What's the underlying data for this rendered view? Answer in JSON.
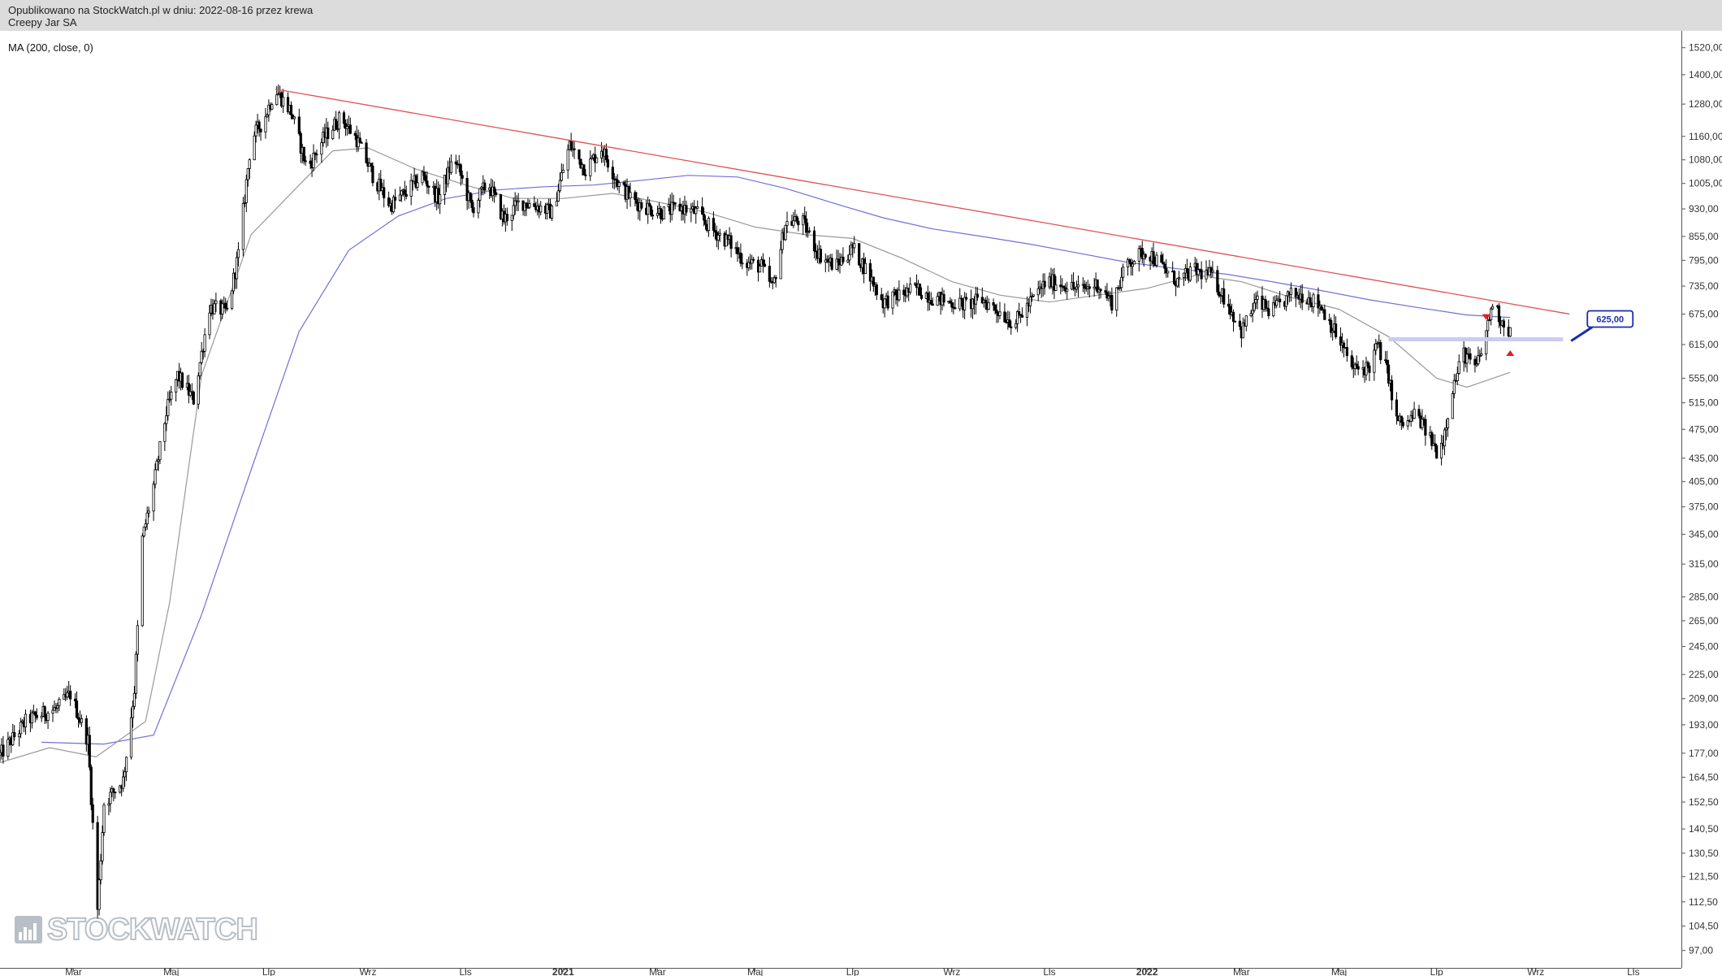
{
  "header": {
    "published_line": "Opublikowano na StockWatch.pl w dniu: 2022-08-16 przez krewa",
    "instrument": "Creepy Jar SA"
  },
  "indicator_label": "MA (200, close, 0)",
  "watermark": "STOCKWATCH",
  "colors": {
    "trendline": "#e05050",
    "ma200": "#7070d8",
    "ma_short": "#999999",
    "level_band": "#c8ccf4",
    "marker": "#e02020",
    "callout": "#1a2bb0",
    "candles": "#000000"
  },
  "chart_data": {
    "type": "candlestick",
    "y_scale": "log",
    "ylim": [
      92,
      1600
    ],
    "x_range": [
      "2020-01-15",
      "2022-12-01"
    ],
    "y_ticks": [
      {
        "v": 97,
        "t": "97,00"
      },
      {
        "v": 104.5,
        "t": "104,50"
      },
      {
        "v": 112.5,
        "t": "112,50"
      },
      {
        "v": 121.5,
        "t": "121,50"
      },
      {
        "v": 130.5,
        "t": "130,50"
      },
      {
        "v": 140.5,
        "t": "140,50"
      },
      {
        "v": 152.5,
        "t": "152,50"
      },
      {
        "v": 164.5,
        "t": "164,50"
      },
      {
        "v": 177,
        "t": "177,00"
      },
      {
        "v": 193,
        "t": "193,00"
      },
      {
        "v": 209,
        "t": "209,00"
      },
      {
        "v": 225,
        "t": "225,00"
      },
      {
        "v": 245,
        "t": "245,00"
      },
      {
        "v": 265,
        "t": "265,00"
      },
      {
        "v": 285,
        "t": "285,00"
      },
      {
        "v": 315,
        "t": "315,00"
      },
      {
        "v": 345,
        "t": "345,00"
      },
      {
        "v": 375,
        "t": "375,00"
      },
      {
        "v": 405,
        "t": "405,00"
      },
      {
        "v": 435,
        "t": "435,00"
      },
      {
        "v": 475,
        "t": "475,00"
      },
      {
        "v": 515,
        "t": "515,00"
      },
      {
        "v": 555,
        "t": "555,00"
      },
      {
        "v": 615,
        "t": "615,00"
      },
      {
        "v": 675,
        "t": "675,00"
      },
      {
        "v": 735,
        "t": "735,00"
      },
      {
        "v": 795,
        "t": "795,00"
      },
      {
        "v": 855,
        "t": "855,00"
      },
      {
        "v": 930,
        "t": "930,00"
      },
      {
        "v": 1005,
        "t": "1005,00"
      },
      {
        "v": 1080,
        "t": "1080,00"
      },
      {
        "v": 1160,
        "t": "1160,00"
      },
      {
        "v": 1280,
        "t": "1280,00"
      },
      {
        "v": 1400,
        "t": "1400,00"
      },
      {
        "v": 1520,
        "t": "1520,00"
      }
    ],
    "x_ticks": [
      {
        "d": "2020-03-01",
        "t": "Mar"
      },
      {
        "d": "2020-05-01",
        "t": "Maj"
      },
      {
        "d": "2020-07-01",
        "t": "Lip"
      },
      {
        "d": "2020-09-01",
        "t": "Wrz"
      },
      {
        "d": "2020-11-01",
        "t": "Lis"
      },
      {
        "d": "2021-01-01",
        "t": "2021",
        "bold": true
      },
      {
        "d": "2021-03-01",
        "t": "Mar"
      },
      {
        "d": "2021-05-01",
        "t": "Maj"
      },
      {
        "d": "2021-07-01",
        "t": "Lip"
      },
      {
        "d": "2021-09-01",
        "t": "Wrz"
      },
      {
        "d": "2021-11-01",
        "t": "Lis"
      },
      {
        "d": "2022-01-01",
        "t": "2022",
        "bold": true
      },
      {
        "d": "2022-03-01",
        "t": "Mar"
      },
      {
        "d": "2022-05-01",
        "t": "Maj"
      },
      {
        "d": "2022-07-01",
        "t": "Lip"
      },
      {
        "d": "2022-09-01",
        "t": "Wrz"
      },
      {
        "d": "2022-11-01",
        "t": "Lis"
      }
    ],
    "price_path": [
      [
        "2020-01-15",
        176
      ],
      [
        "2020-02-01",
        196
      ],
      [
        "2020-02-20",
        203
      ],
      [
        "2020-02-28",
        212
      ],
      [
        "2020-03-10",
        184
      ],
      [
        "2020-03-16",
        110
      ],
      [
        "2020-03-20",
        152
      ],
      [
        "2020-04-01",
        163
      ],
      [
        "2020-04-08",
        215
      ],
      [
        "2020-04-13",
        340
      ],
      [
        "2020-04-20",
        400
      ],
      [
        "2020-04-28",
        500
      ],
      [
        "2020-05-05",
        560
      ],
      [
        "2020-05-15",
        520
      ],
      [
        "2020-05-25",
        690
      ],
      [
        "2020-06-05",
        680
      ],
      [
        "2020-06-12",
        810
      ],
      [
        "2020-06-20",
        1150
      ],
      [
        "2020-06-28",
        1220
      ],
      [
        "2020-07-05",
        1340
      ],
      [
        "2020-07-15",
        1250
      ],
      [
        "2020-07-25",
        1050
      ],
      [
        "2020-08-05",
        1160
      ],
      [
        "2020-08-15",
        1230
      ],
      [
        "2020-08-25",
        1150
      ],
      [
        "2020-09-05",
        1020
      ],
      [
        "2020-09-15",
        940
      ],
      [
        "2020-09-25",
        980
      ],
      [
        "2020-10-05",
        1030
      ],
      [
        "2020-10-15",
        960
      ],
      [
        "2020-10-25",
        1090
      ],
      [
        "2020-11-05",
        930
      ],
      [
        "2020-11-15",
        1010
      ],
      [
        "2020-11-25",
        900
      ],
      [
        "2020-12-05",
        950
      ],
      [
        "2020-12-15",
        940
      ],
      [
        "2020-12-25",
        920
      ],
      [
        "2021-01-05",
        1130
      ],
      [
        "2021-01-15",
        1050
      ],
      [
        "2021-01-25",
        1120
      ],
      [
        "2021-02-05",
        1000
      ],
      [
        "2021-02-15",
        950
      ],
      [
        "2021-02-25",
        930
      ],
      [
        "2021-03-05",
        920
      ],
      [
        "2021-03-15",
        935
      ],
      [
        "2021-03-25",
        920
      ],
      [
        "2021-04-05",
        870
      ],
      [
        "2021-04-15",
        840
      ],
      [
        "2021-04-25",
        790
      ],
      [
        "2021-05-05",
        780
      ],
      [
        "2021-05-12",
        730
      ],
      [
        "2021-05-20",
        890
      ],
      [
        "2021-05-30",
        900
      ],
      [
        "2021-06-10",
        810
      ],
      [
        "2021-06-20",
        780
      ],
      [
        "2021-07-01",
        825
      ],
      [
        "2021-07-10",
        770
      ],
      [
        "2021-07-20",
        700
      ],
      [
        "2021-07-30",
        715
      ],
      [
        "2021-08-10",
        730
      ],
      [
        "2021-08-20",
        710
      ],
      [
        "2021-08-30",
        700
      ],
      [
        "2021-09-10",
        695
      ],
      [
        "2021-09-20",
        705
      ],
      [
        "2021-10-01",
        680
      ],
      [
        "2021-10-10",
        655
      ],
      [
        "2021-10-20",
        700
      ],
      [
        "2021-10-30",
        745
      ],
      [
        "2021-11-10",
        740
      ],
      [
        "2021-11-20",
        725
      ],
      [
        "2021-12-01",
        740
      ],
      [
        "2021-12-10",
        700
      ],
      [
        "2021-12-20",
        790
      ],
      [
        "2022-01-01",
        820
      ],
      [
        "2022-01-10",
        780
      ],
      [
        "2022-01-20",
        745
      ],
      [
        "2022-01-30",
        770
      ],
      [
        "2022-02-10",
        760
      ],
      [
        "2022-02-20",
        700
      ],
      [
        "2022-03-01",
        640
      ],
      [
        "2022-03-10",
        700
      ],
      [
        "2022-03-20",
        680
      ],
      [
        "2022-04-01",
        715
      ],
      [
        "2022-04-10",
        715
      ],
      [
        "2022-04-20",
        690
      ],
      [
        "2022-04-30",
        630
      ],
      [
        "2022-05-10",
        570
      ],
      [
        "2022-05-20",
        575
      ],
      [
        "2022-05-25",
        615
      ],
      [
        "2022-06-01",
        560
      ],
      [
        "2022-06-05",
        490
      ],
      [
        "2022-06-12",
        480
      ],
      [
        "2022-06-18",
        500
      ],
      [
        "2022-06-25",
        470
      ],
      [
        "2022-07-01",
        445
      ],
      [
        "2022-07-05",
        460
      ],
      [
        "2022-07-10",
        530
      ],
      [
        "2022-07-18",
        600
      ],
      [
        "2022-07-25",
        570
      ],
      [
        "2022-07-30",
        610
      ],
      [
        "2022-08-05",
        700
      ],
      [
        "2022-08-10",
        665
      ],
      [
        "2022-08-16",
        640
      ]
    ],
    "series": [
      {
        "points": [
          [
            "2020-02-10",
            183
          ],
          [
            "2020-03-20",
            182
          ],
          [
            "2020-04-20",
            187
          ],
          [
            "2020-05-20",
            270
          ],
          [
            "2020-06-20",
            420
          ],
          [
            "2020-07-20",
            640
          ],
          [
            "2020-08-20",
            820
          ],
          [
            "2020-09-20",
            910
          ],
          [
            "2020-10-20",
            960
          ],
          [
            "2020-11-20",
            985
          ],
          [
            "2020-12-20",
            995
          ],
          [
            "2021-01-20",
            1000
          ],
          [
            "2021-02-20",
            1015
          ],
          [
            "2021-03-20",
            1030
          ],
          [
            "2021-04-20",
            1025
          ],
          [
            "2021-05-20",
            990
          ],
          [
            "2021-06-20",
            945
          ],
          [
            "2021-07-20",
            905
          ],
          [
            "2021-08-20",
            875
          ],
          [
            "2021-09-20",
            855
          ],
          [
            "2021-10-20",
            835
          ],
          [
            "2021-11-20",
            812
          ],
          [
            "2021-12-20",
            790
          ],
          [
            "2022-01-20",
            775
          ],
          [
            "2022-02-20",
            762
          ],
          [
            "2022-03-20",
            745
          ],
          [
            "2022-04-20",
            725
          ],
          [
            "2022-05-20",
            705
          ],
          [
            "2022-06-20",
            688
          ],
          [
            "2022-07-20",
            673
          ],
          [
            "2022-08-16",
            668
          ]
        ]
      },
      {
        "points": [
          [
            "2020-01-15",
            172
          ],
          [
            "2020-02-15",
            180
          ],
          [
            "2020-03-15",
            175
          ],
          [
            "2020-04-15",
            195
          ],
          [
            "2020-04-30",
            280
          ],
          [
            "2020-05-20",
            560
          ],
          [
            "2020-06-20",
            860
          ],
          [
            "2020-07-20",
            1000
          ],
          [
            "2020-08-10",
            1110
          ],
          [
            "2020-09-01",
            1120
          ],
          [
            "2020-10-01",
            1050
          ],
          [
            "2020-11-01",
            1000
          ],
          [
            "2020-12-01",
            960
          ],
          [
            "2021-01-01",
            960
          ],
          [
            "2021-02-01",
            975
          ],
          [
            "2021-03-01",
            950
          ],
          [
            "2021-04-01",
            920
          ],
          [
            "2021-05-01",
            880
          ],
          [
            "2021-06-01",
            860
          ],
          [
            "2021-07-01",
            850
          ],
          [
            "2021-08-01",
            800
          ],
          [
            "2021-09-01",
            745
          ],
          [
            "2021-10-01",
            715
          ],
          [
            "2021-11-01",
            700
          ],
          [
            "2021-12-01",
            715
          ],
          [
            "2022-01-01",
            730
          ],
          [
            "2022-02-01",
            760
          ],
          [
            "2022-03-01",
            745
          ],
          [
            "2022-04-01",
            710
          ],
          [
            "2022-05-01",
            685
          ],
          [
            "2022-06-01",
            630
          ],
          [
            "2022-07-01",
            555
          ],
          [
            "2022-07-20",
            540
          ],
          [
            "2022-08-16",
            565
          ]
        ]
      }
    ],
    "trendline": {
      "from": [
        "2020-07-05",
        1340
      ],
      "to": [
        "2022-09-22",
        675
      ]
    },
    "level": {
      "value": 625,
      "from": "2022-06-01",
      "to": "2022-09-18",
      "label": "625,00"
    },
    "markers": [
      {
        "date": "2022-08-01",
        "value": 668,
        "dir": "down"
      },
      {
        "date": "2022-08-16",
        "value": 600,
        "dir": "up"
      }
    ]
  }
}
